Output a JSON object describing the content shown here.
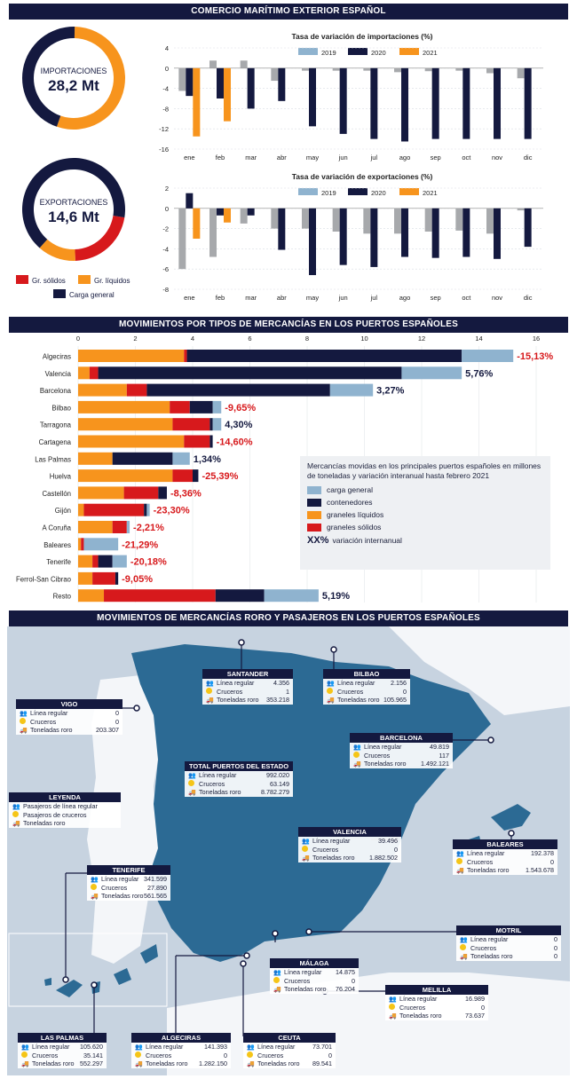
{
  "header1": "COMERCIO MARÍTIMO EXTERIOR ESPAÑOL",
  "header2": "MOVIMIENTOS POR TIPOS DE MERCANCÍAS EN LOS PUERTOS ESPAÑOLES",
  "header3": "MOVIMIENTOS DE MERCANCÍAS RORO Y PASAJEROS EN LOS PUERTOS ESPAÑOLES",
  "colors": {
    "navy": "#14193f",
    "orange": "#f7941d",
    "red": "#d7191c",
    "lightblue": "#8fb3cf",
    "gray": "#a7a9ac",
    "sea": "#c7d3e0",
    "land": "#2c6a94"
  },
  "donuts": [
    {
      "label": "IMPORTACIONES",
      "value": "28,2 Mt",
      "shares": {
        "solidos": 0.0,
        "liquidos": 0.55,
        "general": 0.45
      }
    },
    {
      "label": "EXPORTACIONES",
      "value": "14,6 Mt",
      "shares": {
        "solidos": 0.22,
        "liquidos": 0.12,
        "general": 0.66
      }
    }
  ],
  "donut_legend": {
    "solidos": "Gr. sólidos",
    "liquidos": "Gr. líquidos",
    "general": "Carga general"
  },
  "chart_data": [
    {
      "type": "bar",
      "title": "Tasa de variación de importaciones (%)",
      "categories": [
        "ene",
        "feb",
        "mar",
        "abr",
        "may",
        "jun",
        "jul",
        "ago",
        "sep",
        "oct",
        "nov",
        "dic"
      ],
      "yticks": [
        4,
        0,
        -4,
        -8,
        -12,
        -16
      ],
      "ylim": [
        -16,
        4
      ],
      "series": [
        {
          "name": "2019",
          "values": [
            -4.5,
            1.5,
            1.5,
            -2.5,
            -0.5,
            -0.5,
            -0.5,
            -0.8,
            -0.6,
            -0.5,
            -1.0,
            -2.0
          ]
        },
        {
          "name": "2020",
          "values": [
            -5.5,
            -6.0,
            -8.0,
            -6.5,
            -11.5,
            -13.0,
            -14.0,
            -14.5,
            -14.0,
            -14.0,
            -14.0,
            -14.0
          ]
        },
        {
          "name": "2021",
          "values": [
            -13.5,
            -10.5,
            null,
            null,
            null,
            null,
            null,
            null,
            null,
            null,
            null,
            null
          ]
        }
      ]
    },
    {
      "type": "bar",
      "title": "Tasa de variación de exportaciones (%)",
      "categories": [
        "ene",
        "feb",
        "mar",
        "abr",
        "may",
        "jun",
        "jul",
        "ago",
        "sep",
        "oct",
        "nov",
        "dic"
      ],
      "yticks": [
        2,
        0,
        -2,
        -4,
        -6,
        -8
      ],
      "ylim": [
        -8,
        2
      ],
      "series": [
        {
          "name": "2019",
          "values": [
            -6.0,
            -4.8,
            -1.5,
            -2.0,
            -2.0,
            -2.3,
            -2.5,
            -2.5,
            -2.3,
            -2.2,
            -2.5,
            -0.2
          ]
        },
        {
          "name": "2020",
          "values": [
            1.5,
            -0.7,
            -0.7,
            -4.1,
            -6.6,
            -5.6,
            -5.8,
            -4.8,
            -4.9,
            -4.8,
            -5.0,
            -3.8
          ]
        },
        {
          "name": "2021",
          "values": [
            -3.0,
            -1.4,
            null,
            null,
            null,
            null,
            null,
            null,
            null,
            null,
            null,
            null
          ]
        }
      ]
    },
    {
      "type": "bar",
      "orientation": "horizontal-stacked",
      "xticks": [
        0,
        2,
        4,
        6,
        8,
        10,
        12,
        14,
        16
      ],
      "xlim": [
        0,
        16
      ],
      "categories": [
        "Algeciras",
        "Valencia",
        "Barcelona",
        "Bilbao",
        "Tarragona",
        "Cartagena",
        "Las Palmas",
        "Huelva",
        "Castellón",
        "Gijón",
        "A Coruña",
        "Baleares",
        "Tenerife",
        "Ferrol-San Cibrao",
        "Resto"
      ],
      "series": [
        {
          "name": "graneles líquidos",
          "values": [
            3.7,
            0.4,
            1.7,
            3.2,
            3.3,
            3.7,
            1.2,
            3.3,
            1.6,
            0.2,
            1.2,
            0.1,
            0.5,
            0.5,
            0.9
          ]
        },
        {
          "name": "graneles sólidos",
          "values": [
            0.1,
            0.3,
            0.7,
            0.7,
            1.3,
            0.9,
            0.0,
            0.7,
            1.2,
            2.1,
            0.5,
            0.1,
            0.2,
            0.8,
            3.9
          ]
        },
        {
          "name": "contenedores",
          "values": [
            9.6,
            10.6,
            6.4,
            0.8,
            0.1,
            0.1,
            2.1,
            0.2,
            0.3,
            0.1,
            0.0,
            0.0,
            0.5,
            0.1,
            1.7
          ]
        },
        {
          "name": "carga general",
          "values": [
            1.8,
            2.1,
            1.5,
            0.3,
            0.3,
            0.0,
            0.6,
            0.0,
            0.0,
            0.1,
            0.1,
            1.2,
            0.5,
            0.0,
            1.9
          ]
        }
      ],
      "labels": [
        "-15,13%",
        "5,76%",
        "3,27%",
        "-9,65%",
        "4,30%",
        "-14,60%",
        "1,34%",
        "-25,39%",
        "-8,36%",
        "-23,30%",
        "-2,21%",
        "-21,29%",
        "-20,18%",
        "-9,05%",
        "5,19%"
      ],
      "legend": {
        "title": "Mercancías movidas en los principales puertos españoles en millones de toneladas y variación interanual hasta febrero 2021",
        "items": [
          "carga general",
          "contenedores",
          "graneles líquidos",
          "graneles sólidos"
        ],
        "xx": "XX%",
        "xx_label": "variación internanual"
      }
    }
  ],
  "map": {
    "rows": {
      "linea": "Línea regular",
      "cruceros": "Cruceros",
      "roro": "Toneladas roro"
    },
    "leyenda": {
      "title": "LEYENDA",
      "items": [
        "Pasajeros de línea regular",
        "Pasajeros de cruceros",
        "Toneladas roro"
      ]
    },
    "ports": [
      {
        "name": "VIGO",
        "v": [
          "0",
          "0",
          "203.307"
        ]
      },
      {
        "name": "SANTANDER",
        "v": [
          "4.356",
          "1",
          "353.218"
        ]
      },
      {
        "name": "BILBAO",
        "v": [
          "2.156",
          "0",
          "105.965"
        ]
      },
      {
        "name": "BARCELONA",
        "v": [
          "49.819",
          "117",
          "1.492.121"
        ]
      },
      {
        "name": "TOTAL PUERTOS DEL ESTADO",
        "v": [
          "992.020",
          "63.149",
          "8.782.279"
        ]
      },
      {
        "name": "VALENCIA",
        "v": [
          "39.496",
          "0",
          "1.882.502"
        ]
      },
      {
        "name": "BALEARES",
        "v": [
          "192.378",
          "0",
          "1.543.678"
        ]
      },
      {
        "name": "TENERIFE",
        "v": [
          "341.599",
          "27.890",
          "561.565"
        ]
      },
      {
        "name": "MOTRIL",
        "v": [
          "0",
          "0",
          "0"
        ]
      },
      {
        "name": "MÁLAGA",
        "v": [
          "14.875",
          "0",
          "76.204"
        ]
      },
      {
        "name": "MELILLA",
        "v": [
          "16.989",
          "0",
          "73.637"
        ]
      },
      {
        "name": "LAS PALMAS",
        "v": [
          "105.620",
          "35.141",
          "552.297"
        ]
      },
      {
        "name": "ALGECIRAS",
        "v": [
          "141.393",
          "0",
          "1.282.150"
        ]
      },
      {
        "name": "CEUTA",
        "v": [
          "73.701",
          "0",
          "89.541"
        ]
      }
    ]
  }
}
